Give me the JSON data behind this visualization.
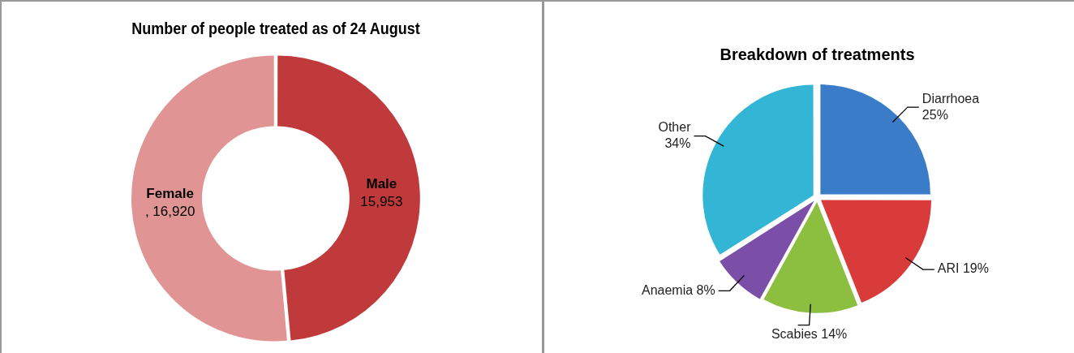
{
  "chart_data": [
    {
      "type": "donut",
      "title": "Number of people treated as of 24 August",
      "categories": [
        "Male",
        "Female"
      ],
      "values": [
        15953,
        16920
      ],
      "colors": [
        "#c0393b",
        "#e09494"
      ],
      "value_labels": [
        "15,953",
        ", 16,920"
      ]
    },
    {
      "type": "pie",
      "title": "Breakdown of treatments",
      "categories": [
        "Diarrhoea",
        "ARI",
        "Scabies",
        "Anaemia",
        "Other"
      ],
      "values": [
        25,
        19,
        14,
        8,
        34
      ],
      "colors": [
        "#3b7cc9",
        "#d93a3a",
        "#8cbf3f",
        "#7b4fa8",
        "#33b6d6"
      ],
      "value_labels": [
        "25%",
        "19%",
        "14%",
        "8%",
        "34%"
      ]
    }
  ]
}
